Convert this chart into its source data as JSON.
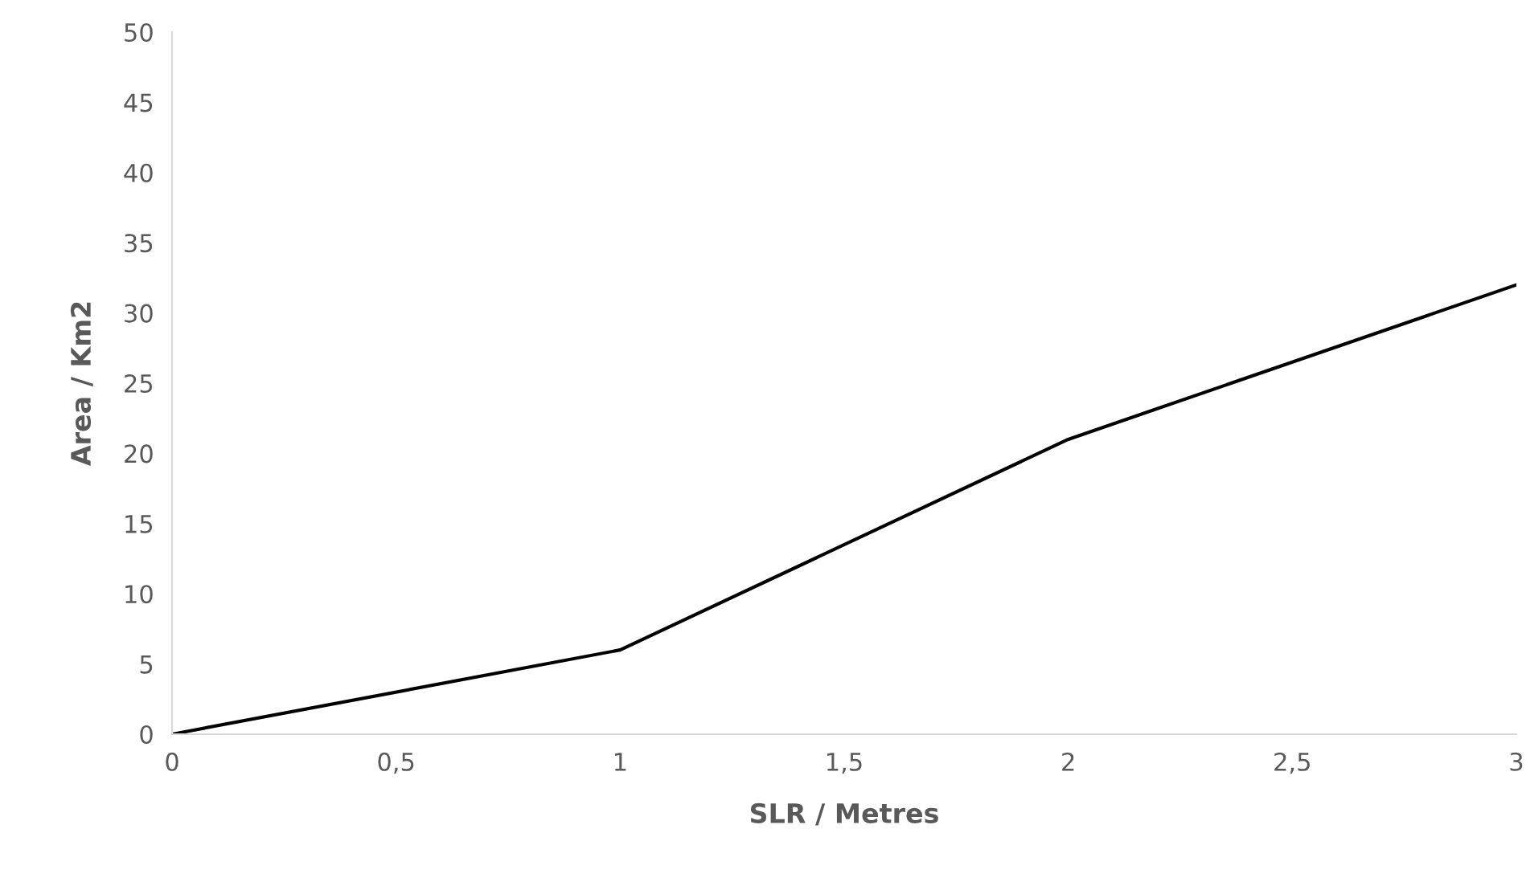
{
  "chart_data": {
    "type": "line",
    "xlabel": "SLR / Metres",
    "ylabel": "Area / Km2",
    "x": [
      0,
      1,
      2,
      3
    ],
    "series": [
      {
        "color": "#000000",
        "values": [
          0,
          6,
          21,
          32
        ]
      }
    ],
    "xlim": [
      0,
      3
    ],
    "ylim": [
      0,
      50
    ],
    "xticks": [
      0,
      {
        "value": 0.5,
        "label": "0,5"
      },
      1,
      {
        "value": 1.5,
        "label": "1,5"
      },
      2,
      {
        "value": 2.5,
        "label": "2,5"
      },
      3
    ],
    "yticks": [
      0,
      5,
      10,
      15,
      20,
      25,
      30,
      35,
      40,
      45,
      50
    ],
    "grid": false,
    "legend": false,
    "marker": "none",
    "line_style": "solid"
  }
}
